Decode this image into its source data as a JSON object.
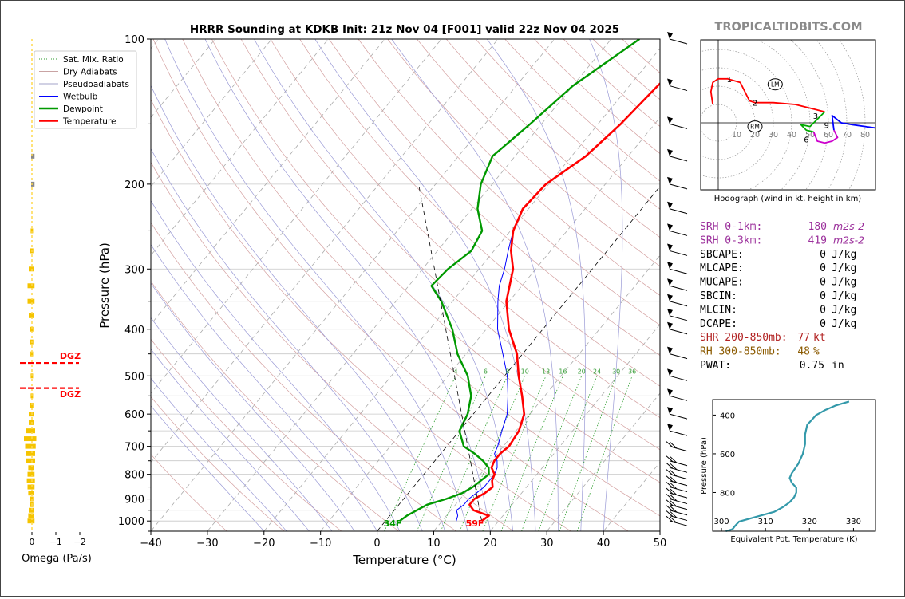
{
  "title": "HRRR Sounding at KDKB Init: 21z Nov 04 [F001] valid 22z Nov 04 2025",
  "brand": "TROPICALTIDBITS.COM",
  "skewt": {
    "xlabel": "Temperature (°C)",
    "ylabel": "Pressure (hPa)",
    "xlim": [
      -40,
      50
    ],
    "ylim": [
      1050,
      100
    ],
    "x_ticks": [
      "−40",
      "−30",
      "−20",
      "−10",
      "0",
      "10",
      "20",
      "30",
      "40",
      "50"
    ],
    "y_ticks": [
      {
        "p": 100,
        "label": "100"
      },
      {
        "p": 200,
        "label": "200"
      },
      {
        "p": 300,
        "label": "300"
      },
      {
        "p": 400,
        "label": "400"
      },
      {
        "p": 500,
        "label": "500"
      },
      {
        "p": 600,
        "label": "600"
      },
      {
        "p": 700,
        "label": "700"
      },
      {
        "p": 800,
        "label": "800"
      },
      {
        "p": 900,
        "label": "900"
      },
      {
        "p": 1000,
        "label": "1000"
      }
    ],
    "legend": [
      {
        "label": "Sat. Mix. Ratio",
        "color": "#2e9e2e",
        "style": "dotted"
      },
      {
        "label": "Dry Adiabats",
        "color": "#c9a3a3",
        "style": "solid"
      },
      {
        "label": "Pseudoadiabats",
        "color": "#a3a3c9",
        "style": "solid"
      },
      {
        "label": "Wetbulb",
        "color": "#0000ff",
        "style": "solid"
      },
      {
        "label": "Dewpoint",
        "color": "#009900",
        "style": "thick"
      },
      {
        "label": "Temperature",
        "color": "#ff0000",
        "style": "thick"
      }
    ],
    "mix_ratio_labels": [
      "4",
      "6",
      "8",
      "10",
      "13",
      "16",
      "20",
      "24",
      "30",
      "36"
    ],
    "temperature": [
      [
        1000,
        17
      ],
      [
        975,
        17.5
      ],
      [
        950,
        14
      ],
      [
        925,
        12.5
      ],
      [
        900,
        12.5
      ],
      [
        875,
        13.5
      ],
      [
        850,
        14
      ],
      [
        825,
        13
      ],
      [
        800,
        12.5
      ],
      [
        775,
        11
      ],
      [
        750,
        10.5
      ],
      [
        725,
        10.5
      ],
      [
        700,
        11
      ],
      [
        650,
        10.5
      ],
      [
        600,
        9
      ],
      [
        550,
        6
      ],
      [
        500,
        2.5
      ],
      [
        450,
        -1
      ],
      [
        400,
        -6
      ],
      [
        350,
        -10.5
      ],
      [
        300,
        -14
      ],
      [
        275,
        -17
      ],
      [
        250,
        -19.5
      ],
      [
        225,
        -21
      ],
      [
        200,
        -20.5
      ],
      [
        175,
        -17.5
      ],
      [
        150,
        -16
      ],
      [
        125,
        -15
      ],
      [
        110,
        -14
      ],
      [
        100,
        -13
      ]
    ],
    "dewpoint": [
      [
        1000,
        2.5
      ],
      [
        975,
        3
      ],
      [
        950,
        4
      ],
      [
        925,
        5
      ],
      [
        900,
        7.5
      ],
      [
        875,
        9.5
      ],
      [
        850,
        10.5
      ],
      [
        825,
        11
      ],
      [
        800,
        11.5
      ],
      [
        775,
        10.5
      ],
      [
        750,
        8.5
      ],
      [
        725,
        6
      ],
      [
        700,
        3
      ],
      [
        650,
        0
      ],
      [
        600,
        -1
      ],
      [
        550,
        -3
      ],
      [
        500,
        -6.5
      ],
      [
        450,
        -11.5
      ],
      [
        400,
        -16
      ],
      [
        350,
        -22
      ],
      [
        325,
        -26
      ],
      [
        300,
        -25.5
      ],
      [
        275,
        -24
      ],
      [
        250,
        -25
      ],
      [
        225,
        -29
      ],
      [
        200,
        -32
      ],
      [
        175,
        -34
      ],
      [
        150,
        -32
      ],
      [
        125,
        -30
      ],
      [
        100,
        -25
      ]
    ],
    "wetbulb": [
      [
        1000,
        12.5
      ],
      [
        975,
        12
      ],
      [
        950,
        11
      ],
      [
        925,
        11.5
      ],
      [
        900,
        11.5
      ],
      [
        875,
        12
      ],
      [
        850,
        12.5
      ],
      [
        825,
        12.5
      ],
      [
        800,
        12.5
      ],
      [
        775,
        12
      ],
      [
        750,
        11
      ],
      [
        725,
        9.5
      ],
      [
        700,
        9
      ],
      [
        650,
        7.5
      ],
      [
        600,
        6
      ],
      [
        550,
        3.5
      ],
      [
        500,
        0.5
      ],
      [
        450,
        -3.5
      ],
      [
        400,
        -8
      ],
      [
        350,
        -12
      ],
      [
        325,
        -14
      ],
      [
        300,
        -15.5
      ],
      [
        275,
        -17.5
      ],
      [
        250,
        -19.5
      ]
    ],
    "surface_temp_label": "59F",
    "surface_dew_label": "34F"
  },
  "omega": {
    "xlabel": "Omega (Pa/s)",
    "x_ticks": [
      "0",
      "−1",
      "−2"
    ],
    "dgz_label_top": "DGZ",
    "dgz_label_bottom": "DGZ",
    "dgz_top_p": 470,
    "dgz_bottom_p": 530,
    "values": [
      [
        1000,
        0.15
      ],
      [
        975,
        0.12
      ],
      [
        950,
        0.1
      ],
      [
        925,
        0.05
      ],
      [
        900,
        0.05
      ],
      [
        875,
        0.12
      ],
      [
        850,
        0.15
      ],
      [
        825,
        0.18
      ],
      [
        800,
        0.15
      ],
      [
        775,
        0.12
      ],
      [
        750,
        0.2
      ],
      [
        725,
        0.2
      ],
      [
        700,
        0.25
      ],
      [
        675,
        0.3
      ],
      [
        650,
        0.2
      ],
      [
        625,
        0.1
      ],
      [
        600,
        0.1
      ],
      [
        575,
        0.05
      ],
      [
        550,
        0.02
      ],
      [
        500,
        0.02
      ],
      [
        450,
        0.03
      ],
      [
        425,
        0.05
      ],
      [
        400,
        0.05
      ],
      [
        375,
        0.1
      ],
      [
        350,
        0.15
      ],
      [
        325,
        0.15
      ],
      [
        300,
        0.1
      ],
      [
        275,
        0.05
      ],
      [
        250,
        0.02
      ],
      [
        200,
        -0.05
      ],
      [
        175,
        -0.05
      ]
    ]
  },
  "hodograph": {
    "caption": "Hodograph (wind in kt, height in km)",
    "ring_labels": [
      "10",
      "20",
      "30",
      "40",
      "50",
      "60",
      "70",
      "80"
    ],
    "height_labels": [
      "1",
      "2",
      "3",
      "6",
      "9"
    ],
    "storm_motion_labels": [
      "LM",
      "RM"
    ],
    "rm": [
      20,
      -2
    ],
    "lm": [
      31,
      21
    ],
    "segments": [
      {
        "color": "#ff0000",
        "points": [
          [
            -3,
            10
          ],
          [
            -4,
            17
          ],
          [
            -3,
            22
          ],
          [
            0,
            24
          ],
          [
            5,
            24
          ],
          [
            12,
            22
          ],
          [
            14,
            18
          ],
          [
            17,
            12
          ],
          [
            20,
            11
          ],
          [
            30,
            11
          ],
          [
            42,
            10
          ],
          [
            54,
            7
          ],
          [
            58,
            6
          ]
        ]
      },
      {
        "color": "#00aa00",
        "points": [
          [
            58,
            6
          ],
          [
            53,
            1
          ],
          [
            50,
            -2
          ],
          [
            45,
            -1
          ],
          [
            48,
            -4
          ],
          [
            52,
            -5
          ]
        ]
      },
      {
        "color": "#cc00cc",
        "points": [
          [
            52,
            -5
          ],
          [
            54,
            -10
          ],
          [
            58,
            -11
          ],
          [
            62,
            -10
          ],
          [
            65,
            -8
          ],
          [
            63,
            -4
          ]
        ]
      },
      {
        "color": "#0000ff",
        "points": [
          [
            63,
            -4
          ],
          [
            62,
            4
          ],
          [
            67,
            0
          ],
          [
            73,
            -1
          ],
          [
            80,
            -2
          ],
          [
            87,
            -3
          ]
        ]
      }
    ]
  },
  "indices": [
    {
      "label": "SRH 0-1km:",
      "value": "180",
      "unit": "m2s-2",
      "color": "#9b2f9b",
      "type": "srh"
    },
    {
      "label": "SRH 0-3km:",
      "value": "419",
      "unit": "m2s-2",
      "color": "#9b2f9b",
      "type": "srh"
    },
    {
      "label": "SBCAPE:",
      "value": "0",
      "unit": "J/kg",
      "color": "#000000"
    },
    {
      "label": "MLCAPE:",
      "value": "0",
      "unit": "J/kg",
      "color": "#000000"
    },
    {
      "label": "MUCAPE:",
      "value": "0",
      "unit": "J/kg",
      "color": "#000000"
    },
    {
      "label": "SBCIN:",
      "value": "0",
      "unit": "J/kg",
      "color": "#000000"
    },
    {
      "label": "MLCIN:",
      "value": "0",
      "unit": "J/kg",
      "color": "#000000"
    },
    {
      "label": "DCAPE:",
      "value": "0",
      "unit": "J/kg",
      "color": "#000000"
    },
    {
      "label": "SHR 200-850mb:",
      "value": "77",
      "unit": "kt",
      "color": "#b22222"
    },
    {
      "label": "RH 300-850mb:",
      "value": "48",
      "unit": "%",
      "color": "#8b5a00"
    },
    {
      "label": "PWAT:",
      "value": "0.75",
      "unit": "in",
      "color": "#000000"
    }
  ],
  "theta_e": {
    "xlabel": "Equivalent Pot. Temperature (K)",
    "ylabel": "Pressure (hPa)",
    "x_ticks": [
      "300",
      "310",
      "320",
      "330"
    ],
    "y_ticks": [
      "400",
      "600",
      "800"
    ],
    "xlim": [
      298,
      335
    ],
    "ylim": [
      1000,
      320
    ],
    "profile": [
      [
        1000,
        301
      ],
      [
        990,
        302.5
      ],
      [
        975,
        303
      ],
      [
        950,
        304
      ],
      [
        925,
        308
      ],
      [
        900,
        312
      ],
      [
        875,
        314
      ],
      [
        850,
        315.5
      ],
      [
        825,
        316.5
      ],
      [
        800,
        317
      ],
      [
        775,
        317
      ],
      [
        750,
        316
      ],
      [
        725,
        315.5
      ],
      [
        700,
        316
      ],
      [
        650,
        317.5
      ],
      [
        600,
        318.5
      ],
      [
        550,
        319
      ],
      [
        500,
        319
      ],
      [
        450,
        319.5
      ],
      [
        425,
        320.5
      ],
      [
        400,
        321.5
      ],
      [
        375,
        323.5
      ],
      [
        350,
        326
      ],
      [
        330,
        329
      ]
    ],
    "color": "#3399aa"
  },
  "chart_data": [
    {
      "type": "line",
      "title": "HRRR Sounding at KDKB Init: 21z Nov 04 [F001] valid 22z Nov 04 2025",
      "xlabel": "Temperature (°C)",
      "ylabel": "Pressure (hPa)",
      "xlim": [
        -40,
        50
      ],
      "ylim": [
        1050,
        100
      ],
      "log_y": true,
      "legend": "top-left",
      "series": [
        {
          "name": "Temperature",
          "points": [
            [
              1000,
              17
            ],
            [
              975,
              17.5
            ],
            [
              950,
              14
            ],
            [
              925,
              12.5
            ],
            [
              900,
              12.5
            ],
            [
              875,
              13.5
            ],
            [
              850,
              14
            ],
            [
              800,
              12.5
            ],
            [
              750,
              10.5
            ],
            [
              700,
              11
            ],
            [
              600,
              9
            ],
            [
              500,
              2.5
            ],
            [
              400,
              -6
            ],
            [
              300,
              -14
            ],
            [
              250,
              -19.5
            ],
            [
              200,
              -20.5
            ],
            [
              150,
              -16
            ],
            [
              100,
              -13
            ]
          ]
        },
        {
          "name": "Dewpoint",
          "points": [
            [
              1000,
              2.5
            ],
            [
              950,
              4
            ],
            [
              900,
              7.5
            ],
            [
              850,
              10.5
            ],
            [
              800,
              11.5
            ],
            [
              750,
              8.5
            ],
            [
              700,
              3
            ],
            [
              600,
              -1
            ],
            [
              500,
              -6.5
            ],
            [
              400,
              -16
            ],
            [
              325,
              -26
            ],
            [
              300,
              -25.5
            ],
            [
              250,
              -25
            ],
            [
              200,
              -32
            ],
            [
              175,
              -34
            ],
            [
              100,
              -25
            ]
          ]
        },
        {
          "name": "Wetbulb",
          "points": [
            [
              1000,
              12.5
            ],
            [
              950,
              11
            ],
            [
              900,
              11.5
            ],
            [
              850,
              12.5
            ],
            [
              800,
              12.5
            ],
            [
              700,
              9
            ],
            [
              600,
              6
            ],
            [
              500,
              0.5
            ],
            [
              400,
              -8
            ],
            [
              300,
              -15.5
            ],
            [
              250,
              -19.5
            ]
          ]
        }
      ]
    },
    {
      "type": "line",
      "xlabel": "Equivalent Pot. Temperature (K)",
      "ylabel": "Pressure (hPa)",
      "series": [
        {
          "points": [
            [
              1000,
              301
            ],
            [
              950,
              304
            ],
            [
              900,
              312
            ],
            [
              850,
              315.5
            ],
            [
              800,
              317
            ],
            [
              750,
              316
            ],
            [
              700,
              316
            ],
            [
              600,
              318.5
            ],
            [
              500,
              319
            ],
            [
              400,
              321.5
            ],
            [
              350,
              326
            ],
            [
              330,
              329
            ]
          ]
        }
      ]
    },
    {
      "type": "line",
      "title": "Hodograph (wind in kt, height in km)",
      "series": [
        {
          "points": [
            [
              -3,
              10
            ],
            [
              0,
              24
            ],
            [
              12,
              22
            ],
            [
              20,
              11
            ],
            [
              42,
              10
            ],
            [
              58,
              6
            ],
            [
              45,
              -1
            ],
            [
              58,
              -11
            ],
            [
              63,
              -4
            ],
            [
              67,
              0
            ],
            [
              87,
              -3
            ]
          ]
        }
      ]
    }
  ]
}
